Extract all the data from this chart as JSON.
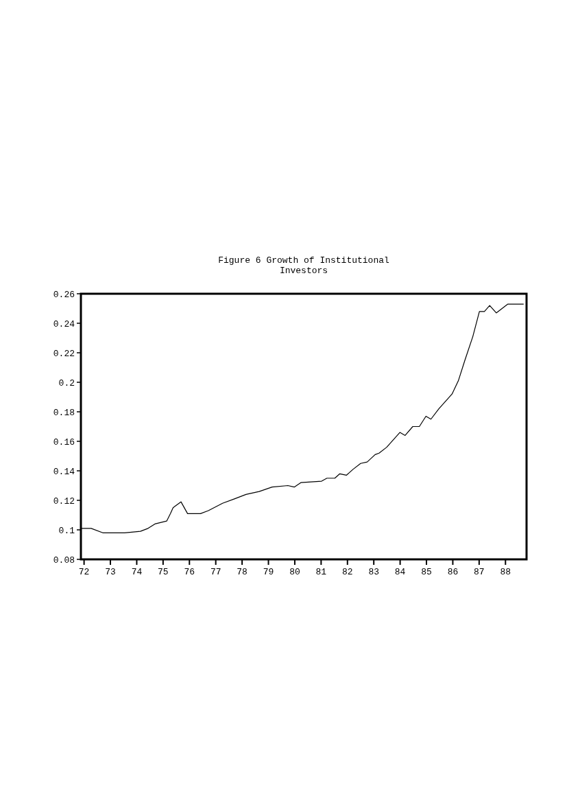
{
  "chart_data": {
    "type": "line",
    "title": "Figure 6 Growth of Institutional Investors",
    "x": [
      71.88,
      72.27,
      72.71,
      73.54,
      74.14,
      74.43,
      74.69,
      75.14,
      75.28,
      75.38,
      75.68,
      75.93,
      76.42,
      76.72,
      77.26,
      77.71,
      78.15,
      78.65,
      79.14,
      79.74,
      79.98,
      80.23,
      81.02,
      81.22,
      81.52,
      81.71,
      81.96,
      82.21,
      82.5,
      82.75,
      83.05,
      83.2,
      83.49,
      83.99,
      84.19,
      84.48,
      84.73,
      84.98,
      85.17,
      85.47,
      85.97,
      86.21,
      86.46,
      86.76,
      87.01,
      87.2,
      87.4,
      87.65,
      88.09,
      88.69
    ],
    "series": [
      {
        "color": "#000000",
        "values": [
          0.101,
          0.101,
          0.098,
          0.098,
          0.099,
          0.101,
          0.104,
          0.106,
          0.111,
          0.115,
          0.119,
          0.111,
          0.111,
          0.113,
          0.118,
          0.121,
          0.124,
          0.126,
          0.129,
          0.13,
          0.129,
          0.132,
          0.133,
          0.135,
          0.135,
          0.138,
          0.137,
          0.141,
          0.145,
          0.146,
          0.151,
          0.152,
          0.156,
          0.166,
          0.164,
          0.17,
          0.17,
          0.177,
          0.175,
          0.182,
          0.192,
          0.201,
          0.215,
          0.231,
          0.248,
          0.248,
          0.252,
          0.247,
          0.253,
          0.253
        ]
      }
    ],
    "xlim": [
      71.88,
      88.8
    ],
    "xticks": [
      72,
      73,
      74,
      75,
      76,
      77,
      78,
      79,
      80,
      81,
      82,
      83,
      84,
      85,
      86,
      87,
      88
    ],
    "ylim": [
      0.08,
      0.26
    ],
    "yticks": [
      0.08,
      0.1,
      0.12,
      0.14,
      0.16,
      0.18,
      0.2,
      0.22,
      0.24,
      0.26
    ],
    "marker": "none",
    "line_style": "solid"
  }
}
